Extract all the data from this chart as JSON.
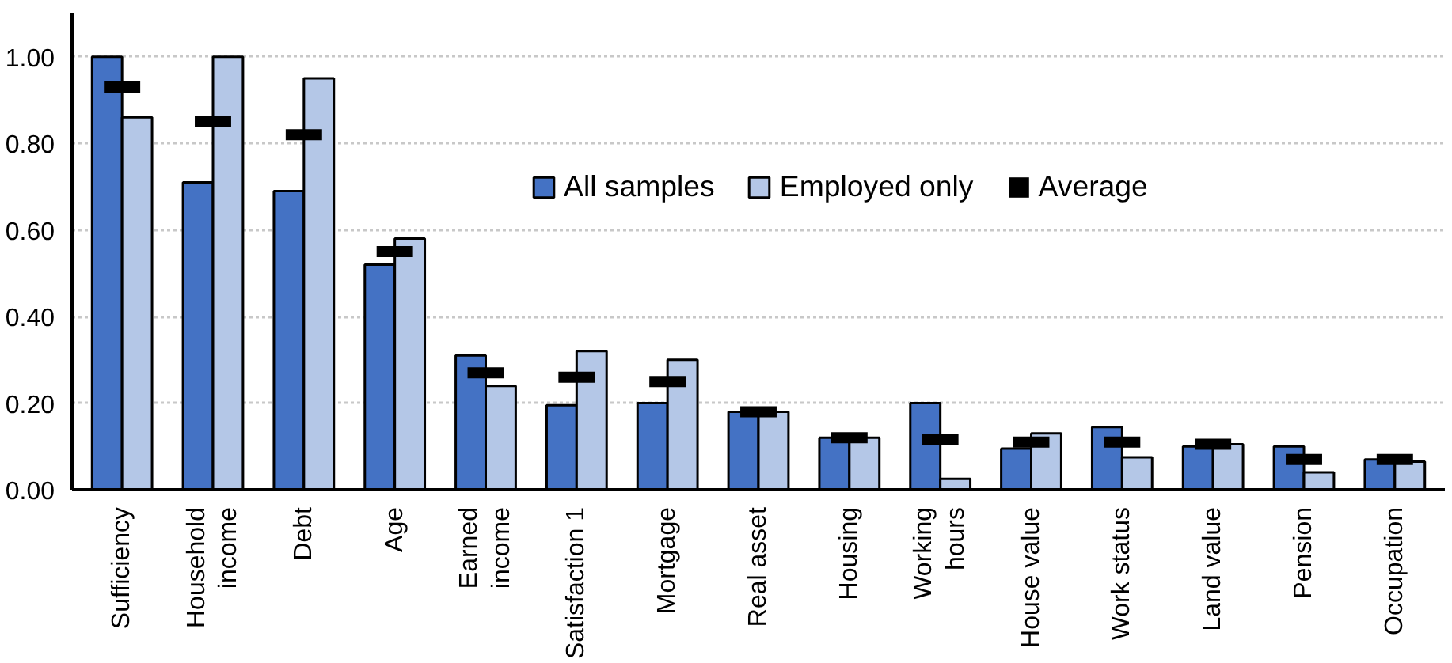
{
  "chart_data": {
    "type": "bar",
    "categories": [
      "Sufficiency",
      "Household\nincome",
      "Debt",
      "Age",
      "Earned\nincome",
      "Satisfaction 1",
      "Mortgage",
      "Real asset",
      "Housing",
      "Working\nhours",
      "House value",
      "Work status",
      "Land value",
      "Pension",
      "Occupation"
    ],
    "series": [
      {
        "name": "All samples",
        "color": "#4472c4",
        "values": [
          1.0,
          0.71,
          0.69,
          0.52,
          0.31,
          0.195,
          0.2,
          0.18,
          0.12,
          0.2,
          0.095,
          0.145,
          0.1,
          0.1,
          0.07
        ]
      },
      {
        "name": "Employed only",
        "color": "#b4c7e7",
        "values": [
          0.86,
          1.0,
          0.95,
          0.58,
          0.24,
          0.32,
          0.3,
          0.18,
          0.12,
          0.025,
          0.13,
          0.075,
          0.105,
          0.04,
          0.065
        ]
      },
      {
        "name": "Average",
        "type": "scatter",
        "color": "#000000",
        "values": [
          0.93,
          0.85,
          0.82,
          0.55,
          0.27,
          0.26,
          0.25,
          0.18,
          0.12,
          0.115,
          0.11,
          0.11,
          0.105,
          0.07,
          0.07
        ]
      }
    ],
    "ylim": [
      0,
      1.1
    ],
    "yticks": [
      {
        "value": 0,
        "label": "0.00"
      },
      {
        "value": 0.2,
        "label": "0.20"
      },
      {
        "value": 0.4,
        "label": "0.40"
      },
      {
        "value": 0.6,
        "label": "0.60"
      },
      {
        "value": 0.8,
        "label": "0.80"
      },
      {
        "value": 1.0,
        "label": "1.00"
      }
    ],
    "grid": "y",
    "legend": "top right"
  }
}
